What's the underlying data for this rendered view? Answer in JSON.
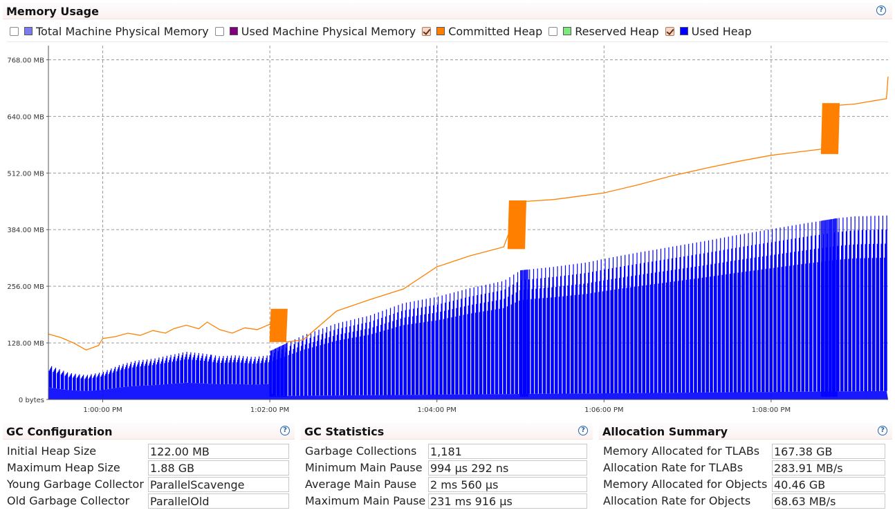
{
  "memory_usage": {
    "title": "Memory Usage",
    "help_icon": "question-circle-icon",
    "legend": [
      {
        "label": "Total Machine Physical Memory",
        "checked": false,
        "color": "#7b7bf0"
      },
      {
        "label": "Used Machine Physical Memory",
        "checked": false,
        "color": "#800080"
      },
      {
        "label": "Committed Heap",
        "checked": true,
        "color": "#ff8000"
      },
      {
        "label": "Reserved Heap",
        "checked": false,
        "color": "#7ce97c"
      },
      {
        "label": "Used Heap",
        "checked": true,
        "color": "#0000ff"
      }
    ]
  },
  "chart_data": {
    "type": "area",
    "title": "",
    "y_tick_labels": [
      "0 bytes",
      "128.00 MB",
      "256.00 MB",
      "384.00 MB",
      "512.00 MB",
      "640.00 MB",
      "768.00 MB"
    ],
    "y_tick_values_mb": [
      0,
      128,
      256,
      384,
      512,
      640,
      768
    ],
    "ylim_mb": [
      0,
      800
    ],
    "x_tick_labels": [
      "1:00:00 PM",
      "1:02:00 PM",
      "1:04:00 PM",
      "1:06:00 PM",
      "1:08:00 PM"
    ],
    "x_tick_values_min": [
      60,
      62,
      64,
      66,
      68
    ],
    "xlim_min": [
      59.35,
      69.4
    ],
    "grid": true,
    "series": [
      {
        "name": "Committed Heap",
        "color": "#ff8000",
        "kind": "line",
        "points": [
          [
            59.35,
            148
          ],
          [
            59.5,
            140
          ],
          [
            59.65,
            128
          ],
          [
            59.8,
            112
          ],
          [
            59.95,
            122
          ],
          [
            60.0,
            138
          ],
          [
            60.15,
            142
          ],
          [
            60.3,
            150
          ],
          [
            60.45,
            145
          ],
          [
            60.6,
            156
          ],
          [
            60.75,
            150
          ],
          [
            60.85,
            160
          ],
          [
            61.0,
            168
          ],
          [
            61.15,
            160
          ],
          [
            61.25,
            175
          ],
          [
            61.4,
            158
          ],
          [
            61.55,
            150
          ],
          [
            61.7,
            162
          ],
          [
            61.85,
            158
          ],
          [
            62.0,
            170
          ],
          [
            62.2,
            130
          ],
          [
            62.4,
            135
          ],
          [
            62.8,
            200
          ],
          [
            63.2,
            226
          ],
          [
            63.6,
            250
          ],
          [
            64.0,
            300
          ],
          [
            64.4,
            325
          ],
          [
            64.8,
            345
          ],
          [
            65.0,
            447
          ],
          [
            65.4,
            452
          ],
          [
            65.8,
            462
          ],
          [
            66.0,
            467
          ],
          [
            66.4,
            485
          ],
          [
            66.8,
            505
          ],
          [
            67.2,
            522
          ],
          [
            67.6,
            538
          ],
          [
            68.0,
            552
          ],
          [
            68.6,
            566
          ],
          [
            68.8,
            665
          ],
          [
            69.0,
            668
          ],
          [
            69.38,
            680
          ],
          [
            69.4,
            730
          ]
        ]
      },
      {
        "name": "Used Heap",
        "color": "#0000ff",
        "kind": "sawtooth",
        "points": [
          [
            59.35,
            78
          ],
          [
            59.6,
            60
          ],
          [
            59.8,
            55
          ],
          [
            60.0,
            62
          ],
          [
            60.2,
            78
          ],
          [
            60.4,
            88
          ],
          [
            60.6,
            92
          ],
          [
            60.8,
            100
          ],
          [
            61.0,
            108
          ],
          [
            61.2,
            104
          ],
          [
            61.4,
            98
          ],
          [
            61.6,
            100
          ],
          [
            61.8,
            96
          ],
          [
            62.0,
            100
          ],
          [
            62.01,
            110
          ],
          [
            62.4,
            145
          ],
          [
            62.8,
            172
          ],
          [
            63.2,
            190
          ],
          [
            63.6,
            218
          ],
          [
            64.0,
            232
          ],
          [
            64.4,
            252
          ],
          [
            64.8,
            268
          ],
          [
            65.0,
            292
          ],
          [
            65.4,
            300
          ],
          [
            65.8,
            310
          ],
          [
            66.0,
            318
          ],
          [
            66.4,
            332
          ],
          [
            66.8,
            345
          ],
          [
            67.2,
            358
          ],
          [
            67.6,
            372
          ],
          [
            68.0,
            385
          ],
          [
            68.4,
            398
          ],
          [
            68.8,
            410
          ],
          [
            69.0,
            414
          ],
          [
            69.4,
            416
          ]
        ]
      }
    ]
  },
  "gc_configuration": {
    "title": "GC Configuration",
    "help_icon": "question-circle-icon",
    "rows": [
      {
        "label": "Initial Heap Size",
        "value": "122.00 MB"
      },
      {
        "label": "Maximum Heap Size",
        "value": "1.88 GB"
      },
      {
        "label": "Young Garbage Collector",
        "value": "ParallelScavenge"
      },
      {
        "label": "Old Garbage Collector",
        "value": "ParallelOld"
      }
    ]
  },
  "gc_statistics": {
    "title": "GC Statistics",
    "help_icon": "question-circle-icon",
    "rows": [
      {
        "label": "Garbage Collections",
        "value": "1,181"
      },
      {
        "label": "Minimum Main Pause",
        "value": "994 μs 292 ns"
      },
      {
        "label": "Average Main Pause",
        "value": "2 ms 560 μs"
      },
      {
        "label": "Maximum Main Pause",
        "value": "231 ms 916 μs"
      }
    ]
  },
  "allocation_summary": {
    "title": "Allocation Summary",
    "help_icon": "question-circle-icon",
    "rows": [
      {
        "label": "Memory Allocated for TLABs",
        "value": "167.38 GB"
      },
      {
        "label": "Allocation Rate for TLABs",
        "value": "283.91 MB/s"
      },
      {
        "label": "Memory Allocated for Objects",
        "value": "40.46 GB"
      },
      {
        "label": "Allocation Rate for Objects",
        "value": "68.63 MB/s"
      }
    ]
  }
}
